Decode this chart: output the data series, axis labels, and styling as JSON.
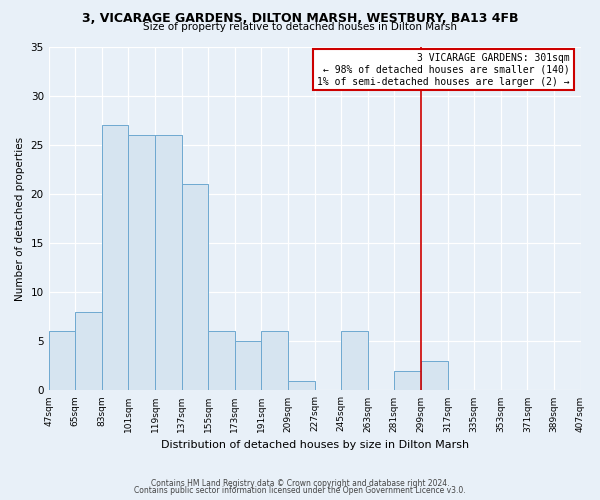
{
  "title": "3, VICARAGE GARDENS, DILTON MARSH, WESTBURY, BA13 4FB",
  "subtitle": "Size of property relative to detached houses in Dilton Marsh",
  "xlabel": "Distribution of detached houses by size in Dilton Marsh",
  "ylabel": "Number of detached properties",
  "footnote1": "Contains HM Land Registry data © Crown copyright and database right 2024.",
  "footnote2": "Contains public sector information licensed under the Open Government Licence v3.0.",
  "bin_labels": [
    "47sqm",
    "65sqm",
    "83sqm",
    "101sqm",
    "119sqm",
    "137sqm",
    "155sqm",
    "173sqm",
    "191sqm",
    "209sqm",
    "227sqm",
    "245sqm",
    "263sqm",
    "281sqm",
    "299sqm",
    "317sqm",
    "335sqm",
    "353sqm",
    "371sqm",
    "389sqm",
    "407sqm"
  ],
  "bar_values": [
    6,
    8,
    27,
    26,
    26,
    21,
    6,
    5,
    6,
    1,
    0,
    6,
    0,
    2,
    3,
    0,
    0,
    0,
    0,
    0
  ],
  "bar_color": "#d6e4f0",
  "bar_edge_color": "#6ea8d0",
  "highlight_bin_index": 14,
  "highlight_line_color": "#cc0000",
  "bin_edges": [
    47,
    65,
    83,
    101,
    119,
    137,
    155,
    173,
    191,
    209,
    227,
    245,
    263,
    281,
    299,
    317,
    335,
    353,
    371,
    389,
    407
  ],
  "ylim": [
    0,
    35
  ],
  "yticks": [
    0,
    5,
    10,
    15,
    20,
    25,
    30,
    35
  ],
  "annotation_text": "3 VICARAGE GARDENS: 301sqm\n← 98% of detached houses are smaller (140)\n1% of semi-detached houses are larger (2) →",
  "annotation_box_color": "#ffffff",
  "annotation_box_edge_color": "#cc0000",
  "background_color": "#e8f0f8",
  "grid_color": "#ffffff",
  "plot_bg_color": "#e8f0f8"
}
